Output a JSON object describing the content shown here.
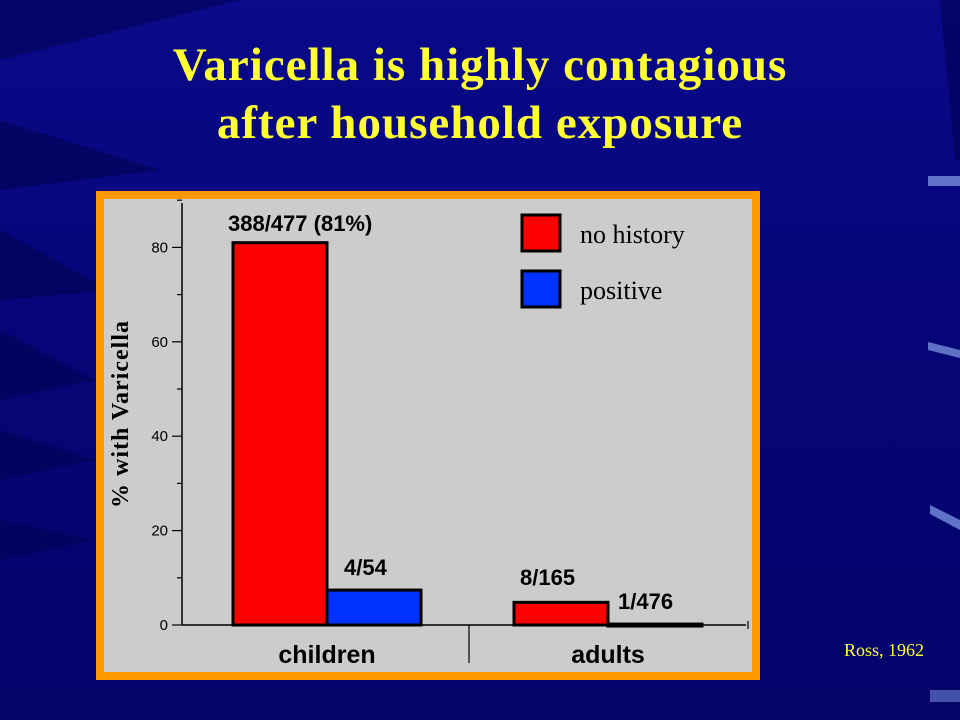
{
  "slide": {
    "title_line1": "Varicella is highly contagious",
    "title_line2": "after household exposure",
    "source": "Ross, 1962"
  },
  "colors": {
    "background": "#06067a",
    "title": "#ffff33",
    "frame": "#ff9900",
    "plot_bg": "#cccccc",
    "no_history": "#ff0000",
    "positive": "#0033ff"
  },
  "chart_data": {
    "type": "bar",
    "ylabel": "% with Varicella",
    "ylim": [
      0,
      90
    ],
    "yticks": [
      0,
      20,
      40,
      60,
      80
    ],
    "categories": [
      "children",
      "adults"
    ],
    "series": [
      {
        "name": "no history",
        "color": "#ff0000",
        "values": [
          81,
          4.8
        ],
        "labels": [
          "388/477 (81%)",
          "8/165"
        ]
      },
      {
        "name": "positive",
        "color": "#0033ff",
        "values": [
          7.4,
          0.2
        ],
        "labels": [
          "4/54",
          "1/476"
        ]
      }
    ],
    "legend_position": "top-right"
  }
}
